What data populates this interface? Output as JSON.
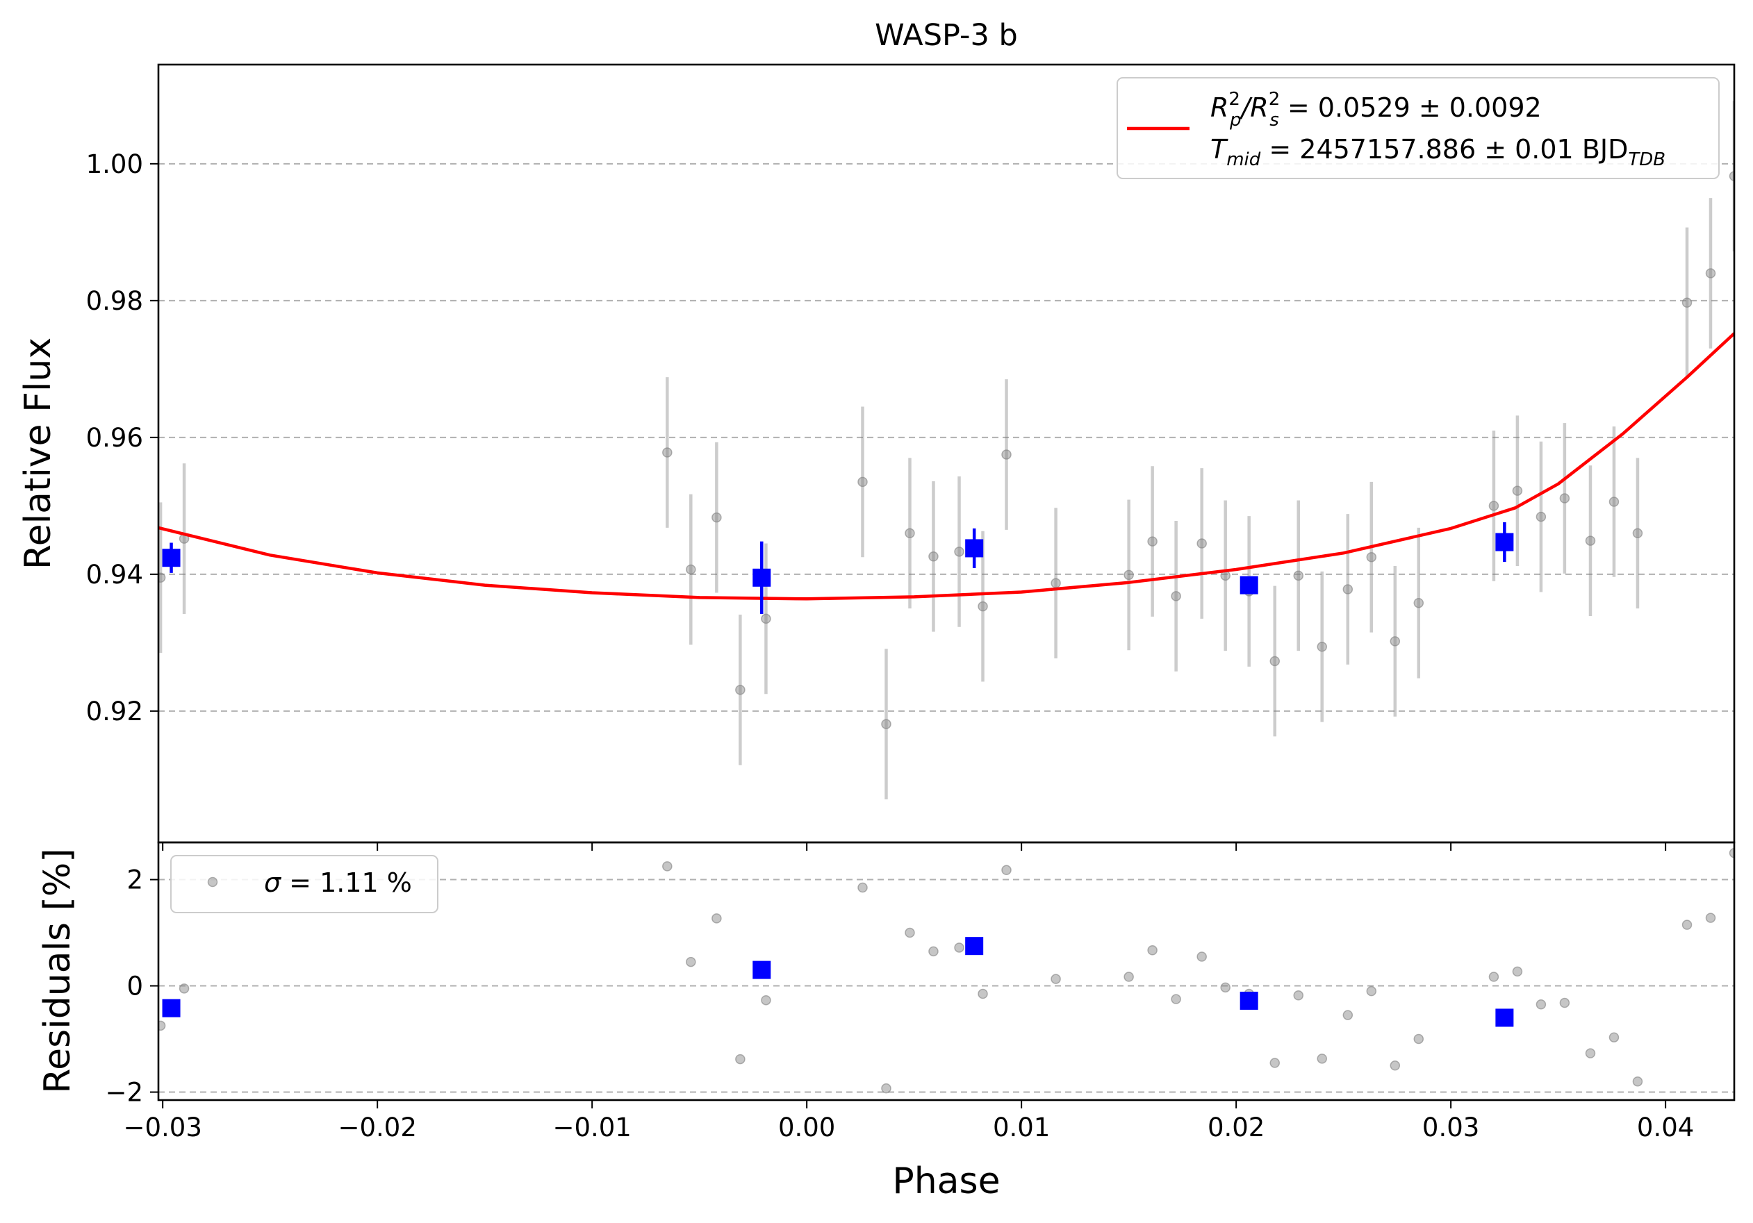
{
  "chart_data": [
    {
      "type": "scatter",
      "title": "WASP-3 b",
      "xlabel": "",
      "ylabel": "Relative Flux",
      "xlim": [
        -0.0302,
        0.0432
      ],
      "ylim": [
        0.9008,
        1.0145
      ],
      "grid": "horizontal dashed",
      "xticks": [
        -0.03,
        -0.02,
        -0.01,
        0.0,
        0.01,
        0.02,
        0.03,
        0.04
      ],
      "xtick_labels": [
        "",
        "",
        "",
        "",
        "",
        "",
        "",
        ""
      ],
      "yticks": [
        0.92,
        0.94,
        0.96,
        0.98,
        1.0
      ],
      "ytick_labels": [
        "0.92",
        "0.94",
        "0.96",
        "0.98",
        "1.00"
      ],
      "legend": {
        "placement": "top-right",
        "line_color": "#ff0000",
        "line1": {
          "main": "R",
          "p_sup": "2",
          "p_sub": "p",
          "slash": "/R",
          "s_sup": "2",
          "s_sub": "s",
          "value": " = 0.0529 ± 0.0092"
        },
        "line2": {
          "main": "T",
          "sub": "mid",
          "value": " = 2457157.886 ± 0.01 BJD",
          "unit_sub": "TDB"
        }
      },
      "model": {
        "name": "",
        "color": "#ff0000",
        "x": [
          -0.0302,
          -0.025,
          -0.02,
          -0.015,
          -0.01,
          -0.005,
          0.0,
          0.005,
          0.01,
          0.015,
          0.02,
          0.025,
          0.03,
          0.033,
          0.035,
          0.038,
          0.041,
          0.0432
        ],
        "y": [
          0.9468,
          0.9428,
          0.9402,
          0.9384,
          0.9373,
          0.9366,
          0.9364,
          0.9367,
          0.9374,
          0.9388,
          0.9407,
          0.9431,
          0.9467,
          0.9497,
          0.9532,
          0.9605,
          0.9688,
          0.9752
        ]
      },
      "raw": {
        "color": "#808080",
        "x": [
          -0.0301,
          -0.029,
          -0.0065,
          -0.0054,
          -0.0042,
          -0.0031,
          -0.0019,
          0.0026,
          0.0037,
          0.0048,
          0.0059,
          0.0071,
          0.0082,
          0.0093,
          0.0116,
          0.015,
          0.0161,
          0.0172,
          0.0184,
          0.0195,
          0.0206,
          0.0218,
          0.0229,
          0.024,
          0.0252,
          0.0263,
          0.0274,
          0.0285,
          0.032,
          0.0331,
          0.0342,
          0.0353,
          0.0365,
          0.0376,
          0.0387,
          0.041,
          0.0421,
          0.0432
        ],
        "y": [
          0.9395,
          0.9452,
          0.9578,
          0.9407,
          0.9483,
          0.9231,
          0.9335,
          0.9535,
          0.9181,
          0.946,
          0.9426,
          0.9433,
          0.9353,
          0.9575,
          0.9387,
          0.9399,
          0.9448,
          0.9368,
          0.9445,
          0.9398,
          0.9375,
          0.9273,
          0.9398,
          0.9294,
          0.9378,
          0.9425,
          0.9302,
          0.9358,
          0.95,
          0.9522,
          0.9484,
          0.9511,
          0.9449,
          0.9506,
          0.946,
          0.9797,
          0.984,
          0.9982
        ],
        "err": [
          0.011,
          0.011,
          0.011,
          0.011,
          0.011,
          0.011,
          0.011,
          0.011,
          0.011,
          0.011,
          0.011,
          0.011,
          0.011,
          0.011,
          0.011,
          0.011,
          0.011,
          0.011,
          0.011,
          0.011,
          0.011,
          0.011,
          0.011,
          0.011,
          0.011,
          0.011,
          0.011,
          0.011,
          0.011,
          0.011,
          0.011,
          0.011,
          0.011,
          0.011,
          0.011,
          0.011,
          0.011,
          0.011
        ]
      },
      "binned": {
        "color": "#0000ff",
        "x": [
          -0.0296,
          -0.0021,
          0.0078,
          0.0206,
          0.0325
        ],
        "y": [
          0.9424,
          0.9395,
          0.9438,
          0.9384,
          0.9447
        ],
        "err": [
          0.0022,
          0.0053,
          0.0029,
          0.0012,
          0.0029
        ]
      }
    },
    {
      "type": "scatter",
      "title": "",
      "xlabel": "Phase",
      "ylabel": "Residuals [%]",
      "xlim": [
        -0.0302,
        0.0432
      ],
      "ylim": [
        -2.15,
        2.7
      ],
      "grid": "horizontal dashed",
      "xticks": [
        -0.03,
        -0.02,
        -0.01,
        0.0,
        0.01,
        0.02,
        0.03,
        0.04
      ],
      "xtick_labels": [
        "−0.03",
        "−0.02",
        "−0.01",
        "0.00",
        "0.01",
        "0.02",
        "0.03",
        "0.04"
      ],
      "yticks": [
        -2,
        0,
        2
      ],
      "ytick_labels": [
        "−2",
        "0",
        "2"
      ],
      "legend": {
        "placement": "top-left",
        "marker_color": "#808080",
        "sigma_symbol": "σ",
        "label": " = 1.11 %"
      },
      "raw": {
        "color": "#808080",
        "x": [
          -0.0301,
          -0.029,
          -0.0065,
          -0.0054,
          -0.0042,
          -0.0031,
          -0.0019,
          0.0026,
          0.0037,
          0.0048,
          0.0059,
          0.0071,
          0.0082,
          0.0093,
          0.0116,
          0.015,
          0.0161,
          0.0172,
          0.0184,
          0.0195,
          0.0206,
          0.0218,
          0.0229,
          0.024,
          0.0252,
          0.0263,
          0.0274,
          0.0285,
          0.032,
          0.0331,
          0.0342,
          0.0353,
          0.0365,
          0.0376,
          0.0387,
          0.041,
          0.0421,
          0.0432
        ],
        "y": [
          -0.75,
          -0.05,
          2.25,
          0.45,
          1.27,
          -1.38,
          -0.27,
          1.85,
          -1.93,
          1.0,
          0.65,
          0.72,
          -0.15,
          2.18,
          0.13,
          0.17,
          0.67,
          -0.25,
          0.55,
          -0.03,
          -0.15,
          -1.45,
          -0.18,
          -1.37,
          -0.55,
          -0.1,
          -1.5,
          -1.0,
          0.17,
          0.27,
          -0.35,
          -0.32,
          -1.27,
          -0.97,
          -1.8,
          1.15,
          1.28,
          2.5
        ]
      },
      "binned": {
        "color": "#0000ff",
        "x": [
          -0.0296,
          -0.0021,
          0.0078,
          0.0206,
          0.0325
        ],
        "y": [
          -0.42,
          0.3,
          0.75,
          -0.28,
          -0.6
        ]
      }
    }
  ]
}
